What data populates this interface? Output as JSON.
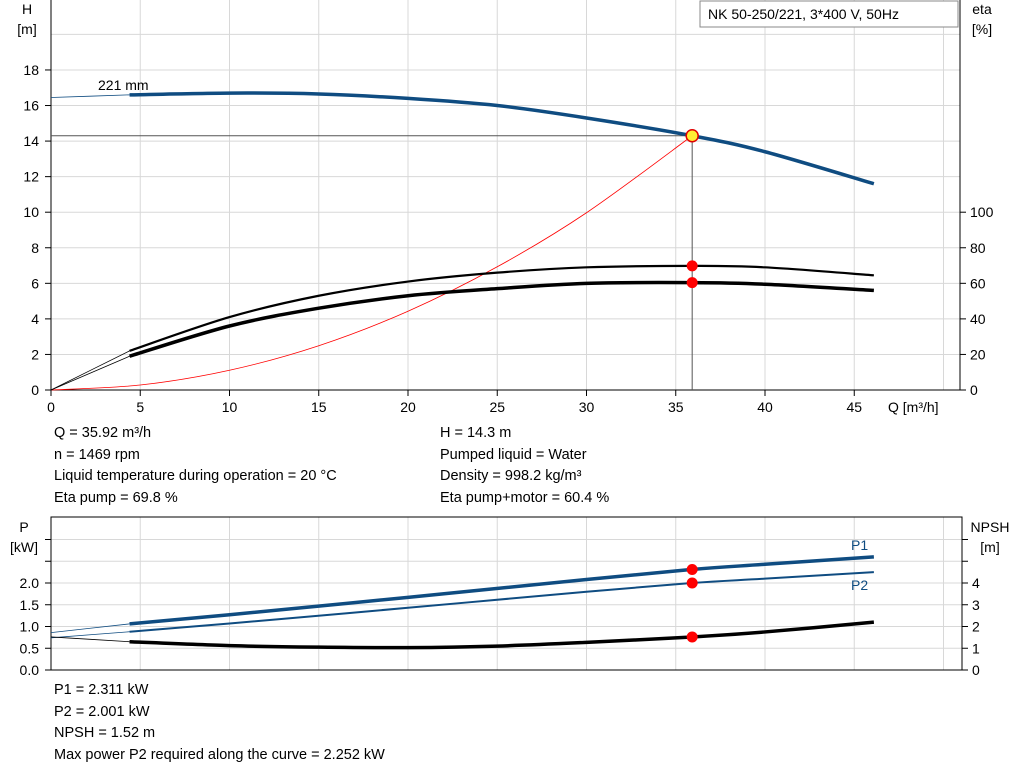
{
  "title_box": "NK 50-250/221, 3*400 V, 50Hz",
  "chart_data": [
    {
      "type": "line",
      "ylabel_left": "H\n[m]",
      "ylabel_right": "eta\n[%]",
      "xlabel": "Q [m³/h]",
      "x_ticks": [
        0,
        5,
        10,
        15,
        20,
        25,
        30,
        35,
        40,
        45
      ],
      "xlim": [
        0,
        50
      ],
      "ylim_left": [
        0,
        20
      ],
      "y_ticks_left": [
        0,
        2,
        4,
        6,
        8,
        10,
        12,
        14,
        16,
        18
      ],
      "ylim_right": [
        0,
        200
      ],
      "y_ticks_right": [
        0,
        20,
        40,
        60,
        80,
        100
      ],
      "grid": true,
      "curve_label": "221 mm",
      "series": [
        {
          "key": "H",
          "axis": "left",
          "color": "#0f4c81",
          "x": [
            0,
            4.4,
            10,
            15,
            20,
            25,
            30,
            35.92,
            40,
            46.1
          ],
          "y": [
            16.45,
            16.6,
            16.7,
            16.65,
            16.4,
            16.0,
            15.3,
            14.3,
            13.4,
            11.6
          ]
        },
        {
          "key": "eta_pump",
          "axis": "right",
          "color": "#000000",
          "x": [
            0,
            4.4,
            10,
            15,
            20,
            25,
            30,
            35.92,
            40,
            46.1
          ],
          "y": [
            0,
            22,
            41,
            53,
            61,
            66,
            69,
            69.8,
            69,
            64.5
          ]
        },
        {
          "key": "eta_pump_motor",
          "axis": "right",
          "color": "#000000",
          "x": [
            0,
            4.4,
            10,
            15,
            20,
            25,
            30,
            35.92,
            40,
            46.1
          ],
          "y": [
            0,
            19,
            36,
            46,
            53,
            57,
            60,
            60.4,
            59.5,
            56
          ]
        },
        {
          "key": "system_curve",
          "axis": "left",
          "color": "#ff0000",
          "x": [
            0,
            5,
            10,
            15,
            20,
            25,
            30,
            35.92
          ],
          "y": [
            0,
            0.28,
            1.11,
            2.49,
            4.43,
            6.93,
            9.97,
            14.3
          ]
        }
      ],
      "operating_point": {
        "Q": 35.92,
        "H": 14.3,
        "eta_pump": 69.8,
        "eta_pump_motor": 60.4
      }
    },
    {
      "type": "line",
      "ylabel_left": "P\n[kW]",
      "ylabel_right": "NPSH\n[m]",
      "xlim": [
        0,
        50
      ],
      "ylim_left": [
        0,
        3.5
      ],
      "y_ticks_left": [
        "0.0",
        "0.5",
        "1.0",
        "1.5",
        "2.0"
      ],
      "ylim_right": [
        0,
        7
      ],
      "y_ticks_right": [
        0,
        1,
        2,
        3,
        4
      ],
      "grid": true,
      "series": [
        {
          "name": "P1",
          "axis": "left",
          "color": "#0f4c81",
          "x": [
            0,
            4.4,
            10,
            20,
            30,
            35.92,
            40,
            46.1
          ],
          "y": [
            0.86,
            1.06,
            1.27,
            1.67,
            2.08,
            2.311,
            2.43,
            2.6
          ]
        },
        {
          "name": "P2",
          "axis": "left",
          "color": "#0f4c81",
          "x": [
            0,
            4.4,
            10,
            20,
            30,
            35.92,
            40,
            46.1
          ],
          "y": [
            0.74,
            0.88,
            1.07,
            1.43,
            1.8,
            2.001,
            2.1,
            2.25
          ]
        },
        {
          "key": "NPSH",
          "axis": "right",
          "color": "#000000",
          "x": [
            0,
            4.4,
            10,
            15,
            20,
            25,
            30,
            35.92,
            40,
            46.1
          ],
          "y": [
            1.52,
            1.3,
            1.12,
            1.05,
            1.03,
            1.1,
            1.27,
            1.52,
            1.75,
            2.2
          ]
        }
      ],
      "operating_point": {
        "Q": 35.92,
        "P1": 2.311,
        "P2": 2.001,
        "NPSH": 1.52
      }
    }
  ],
  "info_top_left": [
    "Q = 35.92 m³/h",
    "n = 1469 rpm",
    "Liquid temperature during operation = 20 °C",
    "Eta pump = 69.8 %"
  ],
  "info_top_right": [
    "H = 14.3 m",
    "Pumped liquid = Water",
    "Density = 998.2 kg/m³",
    "Eta pump+motor = 60.4 %"
  ],
  "info_bottom": [
    "P1 = 2.311 kW",
    "P2 = 2.001 kW",
    "NPSH = 1.52 m",
    "Max power P2 required along the curve = 2.252 kW"
  ]
}
